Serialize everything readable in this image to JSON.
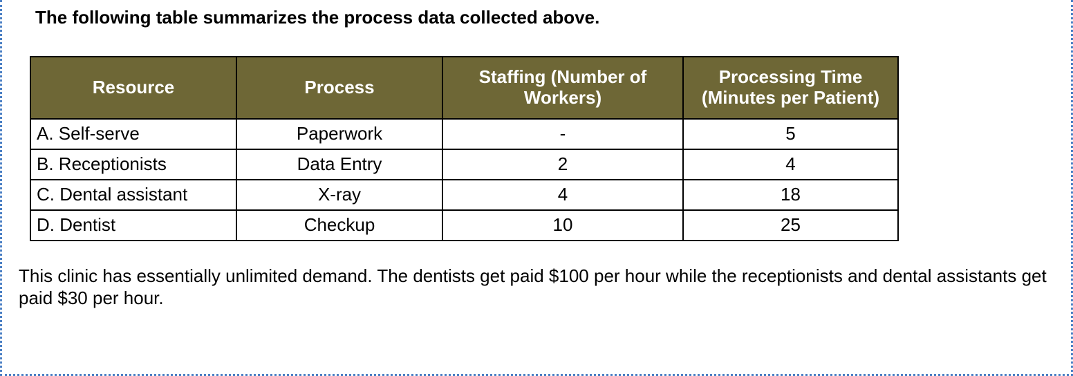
{
  "intro_text": "The following table summarizes the process data collected above.",
  "table": {
    "headers": {
      "col1": "Resource",
      "col2": "Process",
      "col3": "Staffing (Number of Workers)",
      "col4": "Processing Time (Minutes per Patient)"
    },
    "rows": [
      {
        "resource": "A. Self-serve",
        "process": "Paperwork",
        "staffing": "-",
        "time": "5"
      },
      {
        "resource": "B. Receptionists",
        "process": "Data Entry",
        "staffing": "2",
        "time": "4"
      },
      {
        "resource": "C. Dental assistant",
        "process": "X-ray",
        "staffing": "4",
        "time": "18"
      },
      {
        "resource": "D. Dentist",
        "process": "Checkup",
        "staffing": "10",
        "time": "25"
      }
    ],
    "header_bg": "#6e6736",
    "header_fg": "#ffffff",
    "border_color": "#000000",
    "font_size_pt": 20
  },
  "footer_text": "This clinic has essentially unlimited demand. The dentists get paid $100 per hour while the receptionists and dental assistants get paid $30 per hour.",
  "page_border_color": "#4a7fc4"
}
